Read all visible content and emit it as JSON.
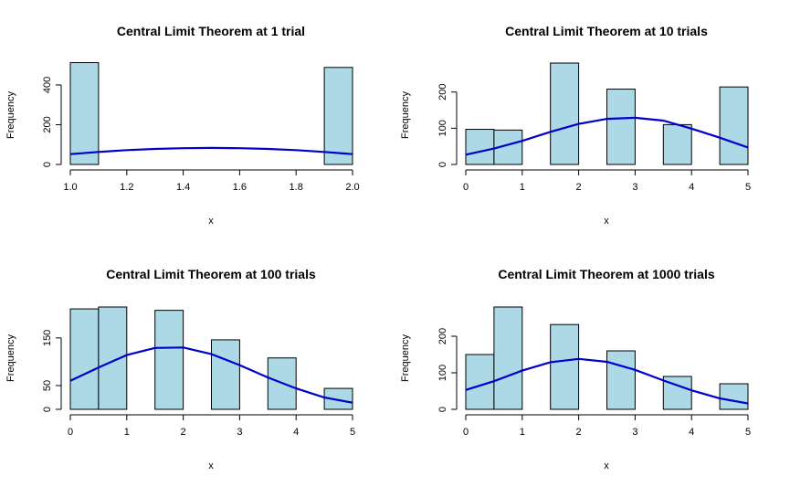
{
  "colors": {
    "bar_fill": "#add8e6",
    "bar_stroke": "#000000",
    "curve": "#0000cd"
  },
  "chart_data": [
    {
      "type": "bar",
      "title": "Central Limit Theorem at 1 trial",
      "xlabel": "x",
      "ylabel": "Frequency",
      "xlim": [
        1.0,
        2.0
      ],
      "ylim": [
        0,
        510
      ],
      "x_ticks": [
        "1.0",
        "1.2",
        "1.4",
        "1.6",
        "1.8",
        "2.0"
      ],
      "y_ticks": [
        "0",
        "200",
        "400"
      ],
      "bins": [
        {
          "start": 1.0,
          "end": 1.1,
          "count": 512
        },
        {
          "start": 1.1,
          "end": 1.2,
          "count": 0
        },
        {
          "start": 1.2,
          "end": 1.3,
          "count": 0
        },
        {
          "start": 1.3,
          "end": 1.4,
          "count": 0
        },
        {
          "start": 1.4,
          "end": 1.5,
          "count": 0
        },
        {
          "start": 1.5,
          "end": 1.6,
          "count": 0
        },
        {
          "start": 1.6,
          "end": 1.7,
          "count": 0
        },
        {
          "start": 1.7,
          "end": 1.8,
          "count": 0
        },
        {
          "start": 1.8,
          "end": 1.9,
          "count": 0
        },
        {
          "start": 1.9,
          "end": 2.0,
          "count": 488
        }
      ],
      "curve": {
        "x": [
          1.0,
          1.1,
          1.2,
          1.3,
          1.4,
          1.5,
          1.6,
          1.7,
          1.8,
          1.9,
          2.0
        ],
        "y": [
          52,
          63,
          72,
          78,
          82,
          83,
          82,
          78,
          72,
          63,
          52
        ]
      }
    },
    {
      "type": "bar",
      "title": "Central Limit Theorem at 10 trials",
      "xlabel": "x",
      "ylabel": "Frequency",
      "xlim": [
        0,
        5
      ],
      "ylim": [
        0,
        280
      ],
      "x_ticks": [
        "0",
        "1",
        "2",
        "3",
        "4",
        "5"
      ],
      "y_ticks": [
        "0",
        "100",
        "200"
      ],
      "bins": [
        {
          "start": 0.0,
          "end": 0.5,
          "count": 97
        },
        {
          "start": 0.5,
          "end": 1.0,
          "count": 95
        },
        {
          "start": 1.0,
          "end": 1.5,
          "count": 0
        },
        {
          "start": 1.5,
          "end": 2.0,
          "count": 280
        },
        {
          "start": 2.0,
          "end": 2.5,
          "count": 0
        },
        {
          "start": 2.5,
          "end": 3.0,
          "count": 208
        },
        {
          "start": 3.0,
          "end": 3.5,
          "count": 0
        },
        {
          "start": 3.5,
          "end": 4.0,
          "count": 110
        },
        {
          "start": 4.0,
          "end": 4.5,
          "count": 0
        },
        {
          "start": 4.5,
          "end": 5.0,
          "count": 214
        }
      ],
      "curve": {
        "x": [
          0,
          0.5,
          1,
          1.5,
          2,
          2.5,
          3,
          3.5,
          4,
          4.5,
          5
        ],
        "y": [
          27,
          44,
          65,
          90,
          112,
          126,
          129,
          121,
          99,
          74,
          47
        ]
      }
    },
    {
      "type": "bar",
      "title": "Central Limit Theorem at 100 trials",
      "xlabel": "x",
      "ylabel": "Frequency",
      "xlim": [
        0,
        5
      ],
      "ylim": [
        0,
        215
      ],
      "x_ticks": [
        "0",
        "1",
        "2",
        "3",
        "4",
        "5"
      ],
      "y_ticks": [
        "0",
        "50",
        "150"
      ],
      "bins": [
        {
          "start": 0.0,
          "end": 0.5,
          "count": 211
        },
        {
          "start": 0.5,
          "end": 1.0,
          "count": 215
        },
        {
          "start": 1.0,
          "end": 1.5,
          "count": 0
        },
        {
          "start": 1.5,
          "end": 2.0,
          "count": 208
        },
        {
          "start": 2.0,
          "end": 2.5,
          "count": 0
        },
        {
          "start": 2.5,
          "end": 3.0,
          "count": 146
        },
        {
          "start": 3.0,
          "end": 3.5,
          "count": 0
        },
        {
          "start": 3.5,
          "end": 4.0,
          "count": 108
        },
        {
          "start": 4.0,
          "end": 4.5,
          "count": 0
        },
        {
          "start": 4.5,
          "end": 5.0,
          "count": 44
        }
      ],
      "curve": {
        "x": [
          0,
          0.5,
          1,
          1.5,
          2,
          2.5,
          3,
          3.5,
          4,
          4.5,
          5
        ],
        "y": [
          60,
          88,
          114,
          129,
          130,
          116,
          93,
          67,
          44,
          25,
          14
        ]
      }
    },
    {
      "type": "bar",
      "title": "Central Limit Theorem at 1000 trials",
      "xlabel": "x",
      "ylabel": "Frequency",
      "xlim": [
        0,
        5
      ],
      "ylim": [
        0,
        280
      ],
      "x_ticks": [
        "0",
        "1",
        "2",
        "3",
        "4",
        "5"
      ],
      "y_ticks": [
        "0",
        "100",
        "200"
      ],
      "bins": [
        {
          "start": 0.0,
          "end": 0.5,
          "count": 150
        },
        {
          "start": 0.5,
          "end": 1.0,
          "count": 280
        },
        {
          "start": 1.0,
          "end": 1.5,
          "count": 0
        },
        {
          "start": 1.5,
          "end": 2.0,
          "count": 232
        },
        {
          "start": 2.0,
          "end": 2.5,
          "count": 0
        },
        {
          "start": 2.5,
          "end": 3.0,
          "count": 160
        },
        {
          "start": 3.0,
          "end": 3.5,
          "count": 0
        },
        {
          "start": 3.5,
          "end": 4.0,
          "count": 90
        },
        {
          "start": 4.0,
          "end": 4.5,
          "count": 0
        },
        {
          "start": 4.5,
          "end": 5.0,
          "count": 70
        }
      ],
      "curve": {
        "x": [
          0,
          0.5,
          1,
          1.5,
          2,
          2.5,
          3,
          3.5,
          4,
          4.5,
          5
        ],
        "y": [
          53,
          77,
          106,
          129,
          138,
          130,
          108,
          79,
          52,
          30,
          16
        ]
      }
    }
  ]
}
